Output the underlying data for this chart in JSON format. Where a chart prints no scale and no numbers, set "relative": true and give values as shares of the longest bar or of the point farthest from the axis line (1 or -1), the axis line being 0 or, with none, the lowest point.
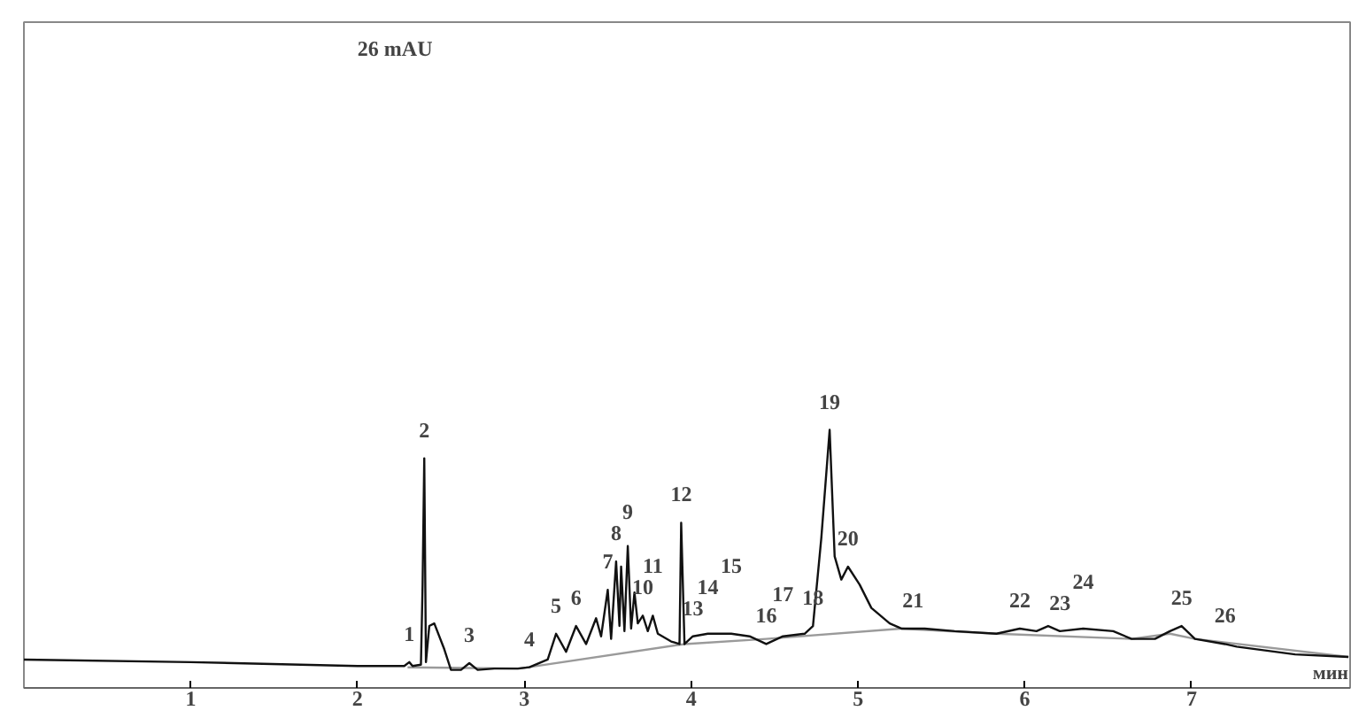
{
  "chart_data": {
    "type": "line",
    "relative": true,
    "xlabel": "мин",
    "xlim": [
      0,
      7.95
    ],
    "xticks": [
      1,
      2,
      3,
      4,
      5,
      6,
      7
    ],
    "grid": false,
    "tick_labels": "x",
    "series": [
      {
        "color": "#111111",
        "x": [
          0,
          1,
          2,
          2.28,
          2.31,
          2.33,
          2.38,
          2.39,
          2.4,
          2.41,
          2.43,
          2.46,
          2.52,
          2.56,
          2.62,
          2.67,
          2.72,
          2.82,
          2.96,
          3.03,
          3.14,
          3.19,
          3.25,
          3.31,
          3.37,
          3.43,
          3.46,
          3.5,
          3.52,
          3.55,
          3.57,
          3.58,
          3.6,
          3.62,
          3.64,
          3.66,
          3.68,
          3.71,
          3.74,
          3.77,
          3.8,
          3.88,
          3.93,
          3.94,
          3.96,
          4.01,
          4.1,
          4.24,
          4.35,
          4.45,
          4.55,
          4.68,
          4.73,
          4.78,
          4.83,
          4.86,
          4.9,
          4.94,
          5.01,
          5.08,
          5.19,
          5.26,
          5.33,
          5.4,
          5.58,
          5.83,
          5.97,
          6.07,
          6.14,
          6.21,
          6.35,
          6.53,
          6.64,
          6.78,
          6.87,
          6.94,
          7.02,
          7.2,
          7.27,
          7.62,
          7.94
        ],
        "values": [
          0.11,
          0.1,
          0.085,
          0.085,
          0.1,
          0.085,
          0.09,
          0.4,
          0.89,
          0.1,
          0.24,
          0.25,
          0.15,
          0.07,
          0.07,
          0.096,
          0.07,
          0.075,
          0.075,
          0.08,
          0.11,
          0.21,
          0.14,
          0.24,
          0.17,
          0.27,
          0.2,
          0.38,
          0.19,
          0.49,
          0.24,
          0.47,
          0.22,
          0.55,
          0.23,
          0.37,
          0.25,
          0.28,
          0.22,
          0.28,
          0.21,
          0.18,
          0.17,
          0.64,
          0.17,
          0.2,
          0.21,
          0.21,
          0.2,
          0.17,
          0.2,
          0.21,
          0.24,
          0.58,
          1.0,
          0.51,
          0.42,
          0.47,
          0.4,
          0.31,
          0.25,
          0.23,
          0.23,
          0.23,
          0.22,
          0.21,
          0.23,
          0.22,
          0.24,
          0.22,
          0.23,
          0.22,
          0.19,
          0.19,
          0.22,
          0.24,
          0.19,
          0.17,
          0.16,
          0.13,
          0.12
        ]
      },
      {
        "color": "#9a9a9a",
        "x": [
          2.3,
          2.97,
          3.96,
          4.45,
          5.26,
          5.83,
          6.64,
          6.87,
          7.02,
          7.94
        ],
        "values": [
          0.08,
          0.075,
          0.17,
          0.19,
          0.23,
          0.21,
          0.19,
          0.21,
          0.19,
          0.12
        ]
      }
    ],
    "annotations": [
      "26 mAU",
      {
        "text": "1",
        "x": 2.31,
        "y": 0.1
      },
      {
        "text": "2",
        "x": 2.4,
        "y": 0.89
      },
      {
        "text": "3",
        "x": 2.67,
        "y": 0.096
      },
      {
        "text": "4",
        "x": 3.03,
        "y": 0.08
      },
      {
        "text": "5",
        "x": 3.19,
        "y": 0.21
      },
      {
        "text": "6",
        "x": 3.31,
        "y": 0.24
      },
      {
        "text": "7",
        "x": 3.5,
        "y": 0.38
      },
      {
        "text": "8",
        "x": 3.55,
        "y": 0.49
      },
      {
        "text": "9",
        "x": 3.62,
        "y": 0.55
      },
      {
        "text": "10",
        "x": 3.71,
        "y": 0.28
      },
      {
        "text": "11",
        "x": 3.77,
        "y": 0.28
      },
      {
        "text": "12",
        "x": 3.94,
        "y": 0.64
      },
      {
        "text": "13",
        "x": 4.01,
        "y": 0.2
      },
      {
        "text": "14",
        "x": 4.1,
        "y": 0.21
      },
      {
        "text": "15",
        "x": 4.24,
        "y": 0.21
      },
      {
        "text": "16",
        "x": 4.45,
        "y": 0.17
      },
      {
        "text": "17",
        "x": 4.55,
        "y": 0.2
      },
      {
        "text": "18",
        "x": 4.73,
        "y": 0.24
      },
      {
        "text": "19",
        "x": 4.83,
        "y": 1.0
      },
      {
        "text": "20",
        "x": 4.94,
        "y": 0.47
      },
      {
        "text": "21",
        "x": 5.33,
        "y": 0.23
      },
      {
        "text": "22",
        "x": 5.97,
        "y": 0.23
      },
      {
        "text": "23",
        "x": 6.21,
        "y": 0.22
      },
      {
        "text": "24",
        "x": 6.35,
        "y": 0.23
      },
      {
        "text": "25",
        "x": 6.94,
        "y": 0.24
      },
      {
        "text": "26",
        "x": 7.2,
        "y": 0.17
      }
    ]
  }
}
